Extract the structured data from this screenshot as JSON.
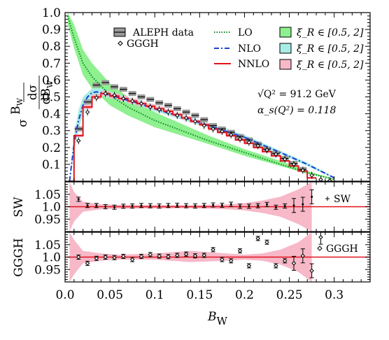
{
  "chart_data": {
    "type": "line",
    "xlabel": "B",
    "xlabel_sub": "W",
    "xlim": [
      0,
      0.34
    ],
    "x_ticks": [
      "0.0",
      "0.05",
      "0.1",
      "0.15",
      "0.2",
      "0.25",
      "0.3"
    ],
    "main": {
      "ylabel_lines": [
        "B",
        "W",
        "dσ",
        "σ",
        "dB",
        "W"
      ],
      "ylim": [
        0,
        1.0
      ],
      "y_ticks": [
        "0.1",
        "0.2",
        "0.3",
        "0.4",
        "0.5",
        "0.6",
        "0.7",
        "0.8",
        "0.9",
        "1.0"
      ],
      "legend": {
        "data": [
          "ALEPH data",
          "GGGH"
        ],
        "lines": [
          "LO",
          "NLO",
          "NNLO"
        ],
        "bands": [
          "ξ_R ∈ [0.5, 2]",
          "ξ_R ∈ [0.5, 2]",
          "ξ_R ∈ [0.5, 2]"
        ]
      },
      "annotations": [
        "√Q² = 91.2 GeV",
        "α_s(Q²) = 0.118"
      ],
      "aleph_data": {
        "edges": [
          0.01,
          0.02,
          0.03,
          0.04,
          0.05,
          0.06,
          0.07,
          0.08,
          0.09,
          0.1,
          0.11,
          0.12,
          0.13,
          0.14,
          0.15,
          0.16,
          0.17,
          0.18,
          0.19,
          0.2,
          0.21,
          0.22,
          0.23,
          0.24,
          0.25,
          0.26,
          0.27
        ],
        "values": [
          0.31,
          0.47,
          0.57,
          0.585,
          0.56,
          0.545,
          0.52,
          0.5,
          0.485,
          0.465,
          0.45,
          0.43,
          0.41,
          0.39,
          0.365,
          0.33,
          0.31,
          0.29,
          0.265,
          0.245,
          0.22,
          0.19,
          0.165,
          0.135,
          0.105,
          0.07
        ]
      },
      "gggh": {
        "x": [
          0.015,
          0.025,
          0.035,
          0.045,
          0.055,
          0.065,
          0.075,
          0.085,
          0.095,
          0.105,
          0.115,
          0.125,
          0.135,
          0.145,
          0.155,
          0.165,
          0.175,
          0.185,
          0.195,
          0.205,
          0.215,
          0.225,
          0.235,
          0.245,
          0.255,
          0.265,
          0.275,
          0.285,
          0.295
        ],
        "y": [
          0.24,
          0.41,
          0.495,
          0.52,
          0.51,
          0.49,
          0.475,
          0.46,
          0.44,
          0.425,
          0.41,
          0.39,
          0.375,
          0.355,
          0.33,
          0.31,
          0.295,
          0.275,
          0.25,
          0.23,
          0.21,
          0.185,
          0.16,
          0.13,
          0.1,
          0.065,
          0.035,
          0.01,
          0.003
        ]
      },
      "lo_central": {
        "x": [
          0.003,
          0.01,
          0.02,
          0.03,
          0.05,
          0.07,
          0.1,
          0.13,
          0.16,
          0.2,
          0.24,
          0.27,
          0.3
        ],
        "y": [
          0.98,
          0.85,
          0.7,
          0.62,
          0.51,
          0.44,
          0.36,
          0.3,
          0.24,
          0.17,
          0.1,
          0.05,
          0.01
        ]
      },
      "lo_band": {
        "x": [
          0.003,
          0.01,
          0.02,
          0.03,
          0.05,
          0.07,
          0.1,
          0.13,
          0.16,
          0.2,
          0.24,
          0.27,
          0.3
        ],
        "lo": [
          0.93,
          0.79,
          0.63,
          0.55,
          0.45,
          0.39,
          0.32,
          0.27,
          0.22,
          0.15,
          0.09,
          0.045,
          0.008
        ],
        "hi": [
          1.0,
          0.93,
          0.78,
          0.7,
          0.58,
          0.5,
          0.41,
          0.34,
          0.27,
          0.19,
          0.12,
          0.06,
          0.015
        ]
      },
      "nlo_central": {
        "x": [
          0.005,
          0.01,
          0.015,
          0.02,
          0.025,
          0.03,
          0.035,
          0.04,
          0.05,
          0.06,
          0.08,
          0.1,
          0.13,
          0.16,
          0.2,
          0.24,
          0.27,
          0.3
        ],
        "y": [
          0.0,
          0.22,
          0.36,
          0.45,
          0.5,
          0.525,
          0.53,
          0.525,
          0.51,
          0.495,
          0.465,
          0.43,
          0.38,
          0.33,
          0.26,
          0.17,
          0.1,
          0.02
        ]
      },
      "nlo_band": {
        "x": [
          0.005,
          0.01,
          0.015,
          0.02,
          0.03,
          0.04,
          0.06,
          0.08,
          0.1,
          0.13,
          0.16,
          0.2,
          0.24,
          0.27,
          0.3
        ],
        "lo": [
          0.0,
          0.17,
          0.3,
          0.4,
          0.49,
          0.505,
          0.48,
          0.45,
          0.415,
          0.365,
          0.315,
          0.245,
          0.16,
          0.09,
          0.018
        ],
        "hi": [
          0.0,
          0.27,
          0.42,
          0.5,
          0.55,
          0.55,
          0.515,
          0.485,
          0.45,
          0.395,
          0.345,
          0.275,
          0.18,
          0.11,
          0.024
        ]
      },
      "nnlo_hist": {
        "edges": [
          0.005,
          0.01,
          0.02,
          0.03,
          0.04,
          0.05,
          0.06,
          0.07,
          0.08,
          0.09,
          0.1,
          0.11,
          0.12,
          0.13,
          0.14,
          0.15,
          0.16,
          0.17,
          0.18,
          0.19,
          0.2,
          0.21,
          0.22,
          0.23,
          0.24,
          0.25,
          0.26,
          0.27,
          0.28
        ],
        "values": [
          0.0,
          0.27,
          0.44,
          0.5,
          0.52,
          0.505,
          0.49,
          0.475,
          0.46,
          0.445,
          0.43,
          0.415,
          0.395,
          0.375,
          0.355,
          0.335,
          0.31,
          0.29,
          0.27,
          0.245,
          0.225,
          0.2,
          0.175,
          0.15,
          0.12,
          0.09,
          0.06,
          0.02
        ]
      }
    },
    "sw_panel": {
      "ylabel": "SW",
      "y_ticks": [
        "1.05",
        "1.0",
        "0.95"
      ],
      "ylim": [
        0.9,
        1.1
      ],
      "legend": "SW",
      "x": [
        0.015,
        0.025,
        0.035,
        0.045,
        0.055,
        0.065,
        0.075,
        0.085,
        0.095,
        0.105,
        0.115,
        0.125,
        0.135,
        0.145,
        0.155,
        0.165,
        0.175,
        0.185,
        0.195,
        0.205,
        0.215,
        0.225,
        0.235,
        0.245,
        0.255,
        0.265,
        0.275
      ],
      "y": [
        1.03,
        1.005,
        1.005,
        1.0,
        0.998,
        1.002,
        1.003,
        1.005,
        1.004,
        1.003,
        1.005,
        1.006,
        1.004,
        1.003,
        1.005,
        1.007,
        1.006,
        1.01,
        1.002,
        1.002,
        1.004,
        1.009,
        0.998,
        1.003,
        1.005,
        1.01,
        1.04
      ],
      "band_x": [
        0.005,
        0.01,
        0.02,
        0.04,
        0.06,
        0.1,
        0.14,
        0.18,
        0.2,
        0.22,
        0.24,
        0.26,
        0.275
      ],
      "band_lo": [
        0.9,
        0.94,
        0.98,
        0.99,
        0.992,
        0.993,
        0.994,
        0.99,
        0.985,
        0.975,
        0.96,
        0.93,
        0.9
      ],
      "band_hi": [
        1.1,
        1.06,
        1.02,
        1.01,
        1.008,
        1.007,
        1.006,
        1.01,
        1.015,
        1.025,
        1.04,
        1.07,
        1.1
      ]
    },
    "gggh_panel": {
      "ylabel": "GGGH",
      "y_ticks": [
        "1.05",
        "1.0",
        "0.95"
      ],
      "ylim": [
        0.9,
        1.1
      ],
      "legend": "GGGH",
      "x": [
        0.015,
        0.025,
        0.035,
        0.045,
        0.055,
        0.065,
        0.075,
        0.085,
        0.095,
        0.105,
        0.115,
        0.125,
        0.135,
        0.145,
        0.155,
        0.165,
        0.175,
        0.185,
        0.195,
        0.205,
        0.215,
        0.225,
        0.235,
        0.245,
        0.255,
        0.265,
        0.275,
        0.285
      ],
      "y": [
        1.0,
        0.975,
        0.995,
        1.0,
        0.998,
        1.003,
        0.99,
        1.003,
        1.01,
        1.004,
        1.002,
        1.007,
        1.012,
        1.005,
        1.007,
        1.03,
        0.99,
        0.985,
        1.025,
        0.965,
        1.075,
        1.06,
        0.965,
        0.985,
        0.975,
        1.005,
        0.945,
        1.08
      ],
      "band_x": [
        0.005,
        0.01,
        0.02,
        0.04,
        0.06,
        0.1,
        0.14,
        0.18,
        0.2,
        0.22,
        0.24,
        0.26,
        0.275
      ],
      "band_lo": [
        0.9,
        0.93,
        0.975,
        0.985,
        0.99,
        0.99,
        0.98,
        0.985,
        0.99,
        0.985,
        0.97,
        0.94,
        0.9
      ],
      "band_hi": [
        1.1,
        1.07,
        1.025,
        1.015,
        1.01,
        1.015,
        1.025,
        1.015,
        1.01,
        1.015,
        1.03,
        1.06,
        1.1
      ]
    },
    "colors": {
      "lo": "#0b8a1f",
      "lo_band": "#8ef08e",
      "nlo": "#1a3fd4",
      "nlo_band": "#a8ece6",
      "nnlo": "#e0141b",
      "nnlo_band": "#f7b8c8",
      "data": "#9a9a9a"
    }
  }
}
